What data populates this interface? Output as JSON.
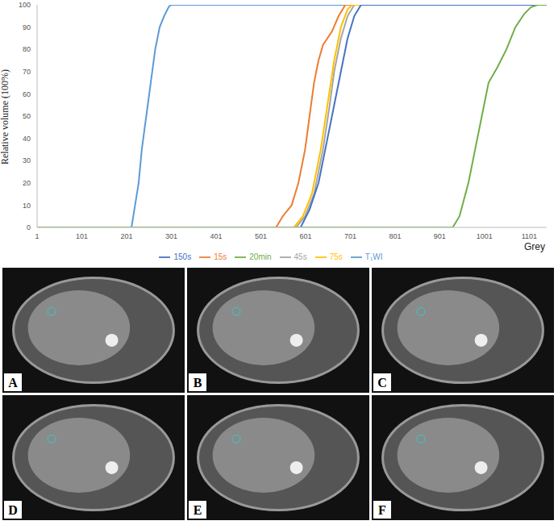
{
  "chart_data": {
    "type": "line",
    "x_label": "Grey",
    "y_label": "Relative volume (100%)",
    "xlim": [
      1,
      1140
    ],
    "xticks": [
      1,
      101,
      201,
      301,
      401,
      501,
      601,
      701,
      801,
      901,
      1001,
      1101
    ],
    "ylim": [
      0,
      100
    ],
    "yticks": [
      0,
      10,
      20,
      30,
      40,
      50,
      60,
      70,
      80,
      90,
      100
    ],
    "grid": false,
    "legend": "bottom",
    "series": [
      {
        "name": "T₁WI",
        "color": "#5b9bd5",
        "x": [
          1,
          212,
          220,
          228,
          235,
          245,
          255,
          265,
          275,
          285,
          295,
          300,
          1140
        ],
        "values": [
          0,
          0,
          10,
          20,
          35,
          50,
          65,
          80,
          90,
          95,
          99,
          100,
          100
        ]
      },
      {
        "name": "15s",
        "color": "#ed7d31",
        "x": [
          1,
          535,
          550,
          570,
          585,
          600,
          610,
          620,
          630,
          640,
          660,
          675,
          690,
          1140
        ],
        "values": [
          0,
          0,
          5,
          10,
          20,
          35,
          50,
          65,
          75,
          82,
          88,
          95,
          100,
          100
        ]
      },
      {
        "name": "45s",
        "color": "#a5a5a5",
        "x": [
          1,
          580,
          600,
          620,
          640,
          655,
          665,
          680,
          695,
          710,
          1140
        ],
        "values": [
          0,
          0,
          5,
          15,
          35,
          55,
          70,
          85,
          95,
          100,
          100
        ]
      },
      {
        "name": "75s",
        "color": "#ffc000",
        "x": [
          1,
          575,
          595,
          615,
          635,
          650,
          665,
          680,
          695,
          705,
          1140
        ],
        "values": [
          0,
          0,
          5,
          15,
          35,
          55,
          75,
          90,
          98,
          100,
          100
        ]
      },
      {
        "name": "150s",
        "color": "#4472c4",
        "x": [
          1,
          590,
          610,
          630,
          650,
          665,
          680,
          695,
          710,
          725,
          1140
        ],
        "values": [
          0,
          0,
          8,
          20,
          40,
          55,
          70,
          85,
          95,
          100,
          100
        ]
      },
      {
        "name": "20min",
        "color": "#70ad47",
        "x": [
          1,
          930,
          945,
          965,
          980,
          995,
          1010,
          1030,
          1050,
          1070,
          1090,
          1105,
          1120,
          1140
        ],
        "values": [
          0,
          0,
          5,
          20,
          35,
          50,
          65,
          72,
          80,
          90,
          96,
          99,
          100,
          100
        ]
      }
    ]
  },
  "panels": [
    "A",
    "B",
    "C",
    "D",
    "E",
    "F"
  ]
}
